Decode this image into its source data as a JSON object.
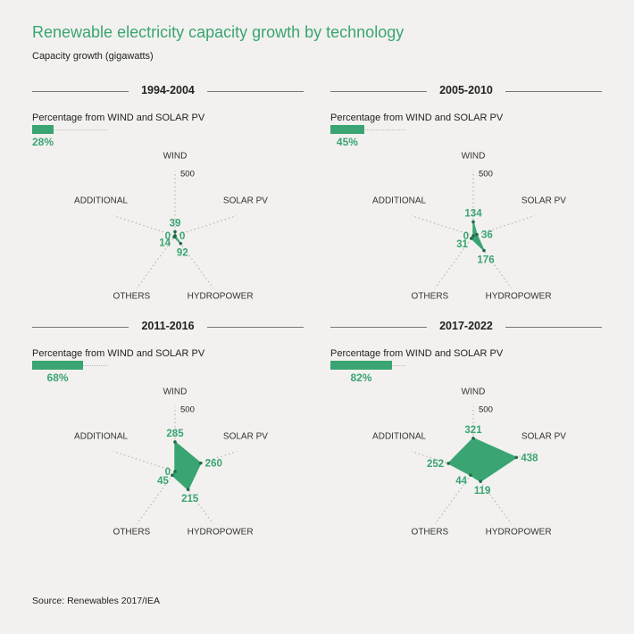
{
  "title": "Renewable electricity capacity growth by technology",
  "subtitle": "Capacity growth (gigawatts)",
  "source": "Source: Renewables 2017/IEA",
  "colors": {
    "accent": "#3aa572",
    "text": "#222222",
    "guide": "#b5b5b5"
  },
  "chart_data": [
    {
      "type": "radar",
      "period": "1994-2004",
      "percentage_label": "Percentage from WIND and SOLAR PV",
      "percentage": 28,
      "percentage_text": "28%",
      "axis_max": 500,
      "axis_max_label": "500",
      "axes": [
        "WIND",
        "SOLAR PV",
        "HYDROPOWER",
        "OTHERS",
        "ADDITIONAL"
      ],
      "values": [
        39,
        0,
        92,
        14,
        0
      ]
    },
    {
      "type": "radar",
      "period": "2005-2010",
      "percentage_label": "Percentage from WIND and SOLAR PV",
      "percentage": 45,
      "percentage_text": "45%",
      "axis_max": 500,
      "axis_max_label": "500",
      "axes": [
        "WIND",
        "SOLAR PV",
        "HYDROPOWER",
        "OTHERS",
        "ADDITIONAL"
      ],
      "values": [
        134,
        36,
        176,
        31,
        0
      ]
    },
    {
      "type": "radar",
      "period": "2011-2016",
      "percentage_label": "Percentage from WIND and SOLAR PV",
      "percentage": 68,
      "percentage_text": "68%",
      "axis_max": 500,
      "axis_max_label": "500",
      "axes": [
        "WIND",
        "SOLAR PV",
        "HYDROPOWER",
        "OTHERS",
        "ADDITIONAL"
      ],
      "values": [
        285,
        260,
        215,
        45,
        0
      ]
    },
    {
      "type": "radar",
      "period": "2017-2022",
      "percentage_label": "Percentage from WIND and SOLAR PV",
      "percentage": 82,
      "percentage_text": "82%",
      "axis_max": 500,
      "axis_max_label": "500",
      "axes": [
        "WIND",
        "SOLAR PV",
        "HYDROPOWER",
        "OTHERS",
        "ADDITIONAL"
      ],
      "values": [
        321,
        438,
        119,
        44,
        252
      ]
    }
  ]
}
